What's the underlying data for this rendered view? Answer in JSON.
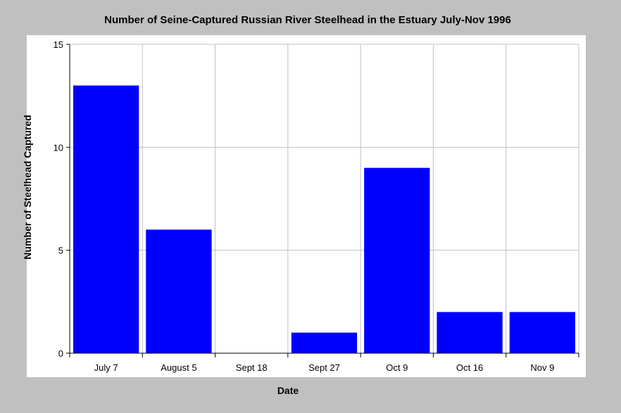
{
  "chart_data": {
    "type": "bar",
    "title": "Number of Seine-Captured Russian River Steelhead in the Estuary July-Nov 1996",
    "xlabel": "Date",
    "ylabel": "Number of Steelhead Captured",
    "categories": [
      "July 7",
      "August 5",
      "Sept 18",
      "Sept 27",
      "Oct 9",
      "Oct 16",
      "Nov 9"
    ],
    "values": [
      13,
      6,
      0,
      1,
      9,
      2,
      2
    ],
    "ylim": [
      0,
      15
    ],
    "yticks": [
      "0",
      "5",
      "10",
      "15"
    ],
    "grid": true,
    "legend": "none",
    "colors": {
      "bar": "#0000ff",
      "plot_background": "#ffffff",
      "page_background": "#c0c0c0",
      "grid": "#c0c0c0"
    }
  }
}
